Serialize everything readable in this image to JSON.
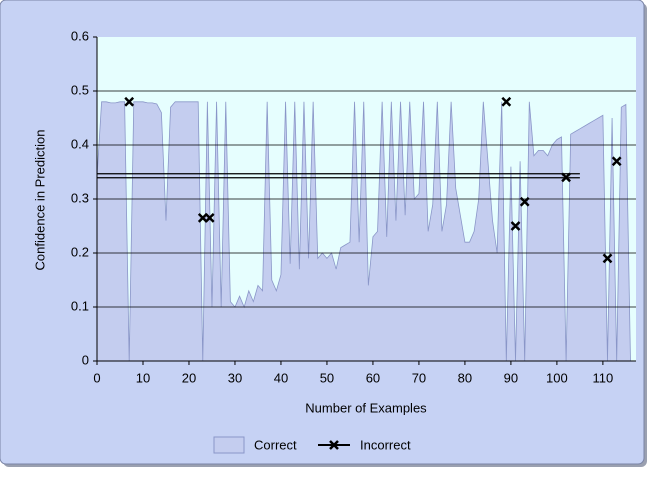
{
  "chart_data": {
    "type": "area-scatter",
    "xlabel": "Number of Examples",
    "ylabel": "Confidence in Prediction",
    "xlim": [
      0,
      117.2
    ],
    "ylim": [
      0,
      0.6
    ],
    "xticks": [
      0,
      10,
      20,
      30,
      40,
      50,
      60,
      70,
      80,
      90,
      100,
      110
    ],
    "yticks": [
      0,
      0.1,
      0.2,
      0.3,
      0.4,
      0.5,
      0.6
    ],
    "grid": true,
    "reference_line": {
      "value": 0.343,
      "x": [
        0,
        105
      ]
    },
    "series": [
      {
        "name": "Correct",
        "type": "area",
        "color": "#c4cdef",
        "x": [
          0,
          1,
          2,
          3,
          4,
          5,
          6,
          7,
          8,
          9,
          10,
          11,
          12,
          13,
          14,
          15,
          16,
          17,
          18,
          19,
          20,
          21,
          22,
          23,
          24,
          25,
          26,
          27,
          28,
          29,
          30,
          31,
          32,
          33,
          34,
          35,
          36,
          37,
          38,
          39,
          40,
          41,
          42,
          43,
          44,
          45,
          46,
          47,
          48,
          49,
          50,
          51,
          52,
          53,
          54,
          55,
          56,
          57,
          58,
          59,
          60,
          61,
          62,
          63,
          64,
          65,
          66,
          67,
          68,
          69,
          70,
          71,
          72,
          73,
          74,
          75,
          76,
          77,
          78,
          79,
          80,
          81,
          82,
          83,
          84,
          85,
          86,
          87,
          88,
          89,
          90,
          91,
          92,
          93,
          94,
          95,
          96,
          97,
          98,
          99,
          100,
          101,
          102,
          103,
          104,
          105,
          106,
          107,
          108,
          109,
          110,
          111,
          112,
          113,
          114,
          115,
          116
        ],
        "values": [
          0.34,
          0.48,
          0.48,
          0.478,
          0.478,
          0.48,
          0.48,
          0,
          0.48,
          0.48,
          0.48,
          0.478,
          0.478,
          0.476,
          0.46,
          0.26,
          0.47,
          0.48,
          0.48,
          0.48,
          0.48,
          0.48,
          0.48,
          0,
          0.48,
          0.1,
          0.48,
          0.1,
          0.48,
          0.11,
          0.1,
          0.12,
          0.1,
          0.13,
          0.11,
          0.14,
          0.13,
          0.48,
          0.15,
          0.13,
          0.16,
          0.48,
          0.18,
          0.48,
          0.17,
          0.48,
          0.19,
          0.48,
          0.19,
          0.2,
          0.19,
          0.2,
          0.17,
          0.21,
          0.215,
          0.22,
          0.48,
          0.22,
          0.48,
          0.14,
          0.23,
          0.24,
          0.48,
          0.23,
          0.48,
          0.26,
          0.48,
          0.27,
          0.48,
          0.3,
          0.31,
          0.48,
          0.24,
          0.29,
          0.48,
          0.24,
          0.29,
          0.48,
          0.32,
          0.27,
          0.22,
          0.22,
          0.24,
          0.3,
          0.48,
          0.37,
          0.26,
          0.2,
          0.48,
          0,
          0.36,
          0,
          0.37,
          0,
          0.48,
          0.38,
          0.39,
          0.39,
          0.38,
          0.4,
          0.41,
          0.415,
          0,
          0.42,
          0.425,
          0.43,
          0.435,
          0.44,
          0.445,
          0.45,
          0.455,
          0,
          0.45,
          0,
          0.47,
          0.475,
          0
        ]
      },
      {
        "name": "Incorrect",
        "type": "scatter",
        "color": "#000000",
        "x": [
          7,
          23,
          24.5,
          89,
          91,
          93,
          102,
          111,
          113
        ],
        "values": [
          0.48,
          0.265,
          0.265,
          0.48,
          0.25,
          0.295,
          0.34,
          0.19,
          0.37
        ]
      }
    ]
  }
}
